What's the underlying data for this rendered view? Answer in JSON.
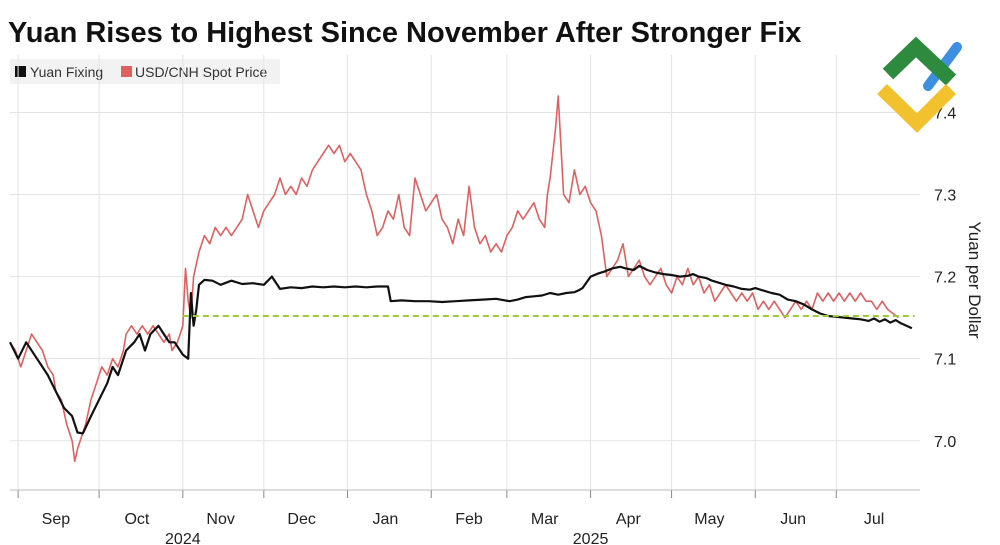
{
  "chart_data": {
    "type": "line",
    "title": "Yuan Rises to Highest Since November After Stronger Fix",
    "ylabel": "Yuan per Dollar",
    "xlabel": "",
    "ylim": [
      6.94,
      7.47
    ],
    "yticks": [
      7.0,
      7.1,
      7.2,
      7.3,
      7.4
    ],
    "ytick_labels": [
      "7.0",
      "7.1",
      "7.2",
      "7.3",
      "7.4"
    ],
    "x_axis": {
      "start": "2024-08-29",
      "end": "2025-07-25",
      "month_labels": [
        {
          "label": "Sep",
          "center": 17
        },
        {
          "label": "Oct",
          "center": 47
        },
        {
          "label": "Nov",
          "center": 78
        },
        {
          "label": "Dec",
          "center": 108
        },
        {
          "label": "Jan",
          "center": 139
        },
        {
          "label": "Feb",
          "center": 170
        },
        {
          "label": "Mar",
          "center": 198
        },
        {
          "label": "Apr",
          "center": 229
        },
        {
          "label": "May",
          "center": 259
        },
        {
          "label": "Jun",
          "center": 290
        },
        {
          "label": "Jul",
          "center": 320
        }
      ],
      "month_boundaries": [
        3,
        33,
        64,
        94,
        125,
        156,
        184,
        215,
        245,
        276,
        306
      ],
      "year_labels": [
        {
          "label": "2024",
          "center": 64
        },
        {
          "label": "2025",
          "center": 215
        }
      ]
    },
    "reference_line": {
      "value": 7.152,
      "start": 64,
      "end": 335,
      "color": "#9ACD32"
    },
    "series": [
      {
        "name": "Yuan Fixing",
        "color": "#111111",
        "points": [
          [
            0,
            7.12
          ],
          [
            3,
            7.1
          ],
          [
            6,
            7.12
          ],
          [
            10,
            7.1
          ],
          [
            14,
            7.08
          ],
          [
            17,
            7.06
          ],
          [
            20,
            7.04
          ],
          [
            23,
            7.03
          ],
          [
            25,
            7.01
          ],
          [
            27,
            7.009
          ],
          [
            30,
            7.03
          ],
          [
            33,
            7.05
          ],
          [
            36,
            7.07
          ],
          [
            38,
            7.09
          ],
          [
            40,
            7.08
          ],
          [
            43,
            7.11
          ],
          [
            46,
            7.12
          ],
          [
            48,
            7.13
          ],
          [
            50,
            7.11
          ],
          [
            52,
            7.13
          ],
          [
            55,
            7.14
          ],
          [
            57,
            7.13
          ],
          [
            59,
            7.12
          ],
          [
            61,
            7.12
          ],
          [
            63,
            7.11
          ],
          [
            64,
            7.105
          ],
          [
            66,
            7.1
          ],
          [
            67,
            7.18
          ],
          [
            68,
            7.14
          ],
          [
            69,
            7.16
          ],
          [
            70,
            7.19
          ],
          [
            72,
            7.196
          ],
          [
            75,
            7.195
          ],
          [
            78,
            7.19
          ],
          [
            82,
            7.195
          ],
          [
            86,
            7.191
          ],
          [
            90,
            7.192
          ],
          [
            94,
            7.19
          ],
          [
            97,
            7.2
          ],
          [
            100,
            7.185
          ],
          [
            104,
            7.187
          ],
          [
            108,
            7.186
          ],
          [
            112,
            7.188
          ],
          [
            116,
            7.187
          ],
          [
            120,
            7.188
          ],
          [
            124,
            7.187
          ],
          [
            128,
            7.188
          ],
          [
            132,
            7.187
          ],
          [
            136,
            7.188
          ],
          [
            140,
            7.188
          ],
          [
            141,
            7.17
          ],
          [
            145,
            7.171
          ],
          [
            150,
            7.17
          ],
          [
            155,
            7.17
          ],
          [
            160,
            7.169
          ],
          [
            165,
            7.17
          ],
          [
            170,
            7.171
          ],
          [
            175,
            7.172
          ],
          [
            180,
            7.173
          ],
          [
            185,
            7.17
          ],
          [
            188,
            7.172
          ],
          [
            191,
            7.175
          ],
          [
            194,
            7.176
          ],
          [
            197,
            7.177
          ],
          [
            200,
            7.18
          ],
          [
            203,
            7.178
          ],
          [
            206,
            7.18
          ],
          [
            209,
            7.181
          ],
          [
            211,
            7.184
          ],
          [
            212,
            7.186
          ],
          [
            215,
            7.2
          ],
          [
            218,
            7.204
          ],
          [
            220,
            7.206
          ],
          [
            223,
            7.21
          ],
          [
            226,
            7.212
          ],
          [
            228,
            7.21
          ],
          [
            231,
            7.208
          ],
          [
            233,
            7.213
          ],
          [
            236,
            7.208
          ],
          [
            239,
            7.205
          ],
          [
            242,
            7.203
          ],
          [
            245,
            7.202
          ],
          [
            248,
            7.2
          ],
          [
            251,
            7.201
          ],
          [
            253,
            7.203
          ],
          [
            255,
            7.2
          ],
          [
            258,
            7.198
          ],
          [
            260,
            7.195
          ],
          [
            262,
            7.193
          ],
          [
            265,
            7.19
          ],
          [
            268,
            7.188
          ],
          [
            271,
            7.185
          ],
          [
            274,
            7.184
          ],
          [
            276,
            7.186
          ],
          [
            279,
            7.183
          ],
          [
            282,
            7.18
          ],
          [
            285,
            7.178
          ],
          [
            288,
            7.172
          ],
          [
            291,
            7.17
          ],
          [
            294,
            7.166
          ],
          [
            297,
            7.16
          ],
          [
            300,
            7.155
          ],
          [
            303,
            7.152
          ],
          [
            306,
            7.151
          ],
          [
            309,
            7.15
          ],
          [
            312,
            7.149
          ],
          [
            315,
            7.148
          ],
          [
            318,
            7.146
          ],
          [
            320,
            7.149
          ],
          [
            322,
            7.145
          ],
          [
            324,
            7.148
          ],
          [
            326,
            7.144
          ],
          [
            328,
            7.147
          ],
          [
            330,
            7.143
          ],
          [
            332,
            7.14
          ],
          [
            334,
            7.137
          ]
        ]
      },
      {
        "name": "USD/CNH Spot Price",
        "color": "#E06060",
        "points": [
          [
            0,
            7.12
          ],
          [
            2,
            7.11
          ],
          [
            4,
            7.09
          ],
          [
            6,
            7.11
          ],
          [
            8,
            7.13
          ],
          [
            10,
            7.12
          ],
          [
            12,
            7.11
          ],
          [
            14,
            7.09
          ],
          [
            16,
            7.08
          ],
          [
            17,
            7.06
          ],
          [
            19,
            7.05
          ],
          [
            21,
            7.02
          ],
          [
            22,
            7.01
          ],
          [
            23,
            7.0
          ],
          [
            24,
            6.975
          ],
          [
            25,
            6.99
          ],
          [
            26,
            7.0
          ],
          [
            28,
            7.02
          ],
          [
            30,
            7.05
          ],
          [
            32,
            7.07
          ],
          [
            34,
            7.09
          ],
          [
            36,
            7.08
          ],
          [
            38,
            7.1
          ],
          [
            40,
            7.09
          ],
          [
            42,
            7.11
          ],
          [
            43,
            7.13
          ],
          [
            45,
            7.14
          ],
          [
            47,
            7.13
          ],
          [
            49,
            7.14
          ],
          [
            51,
            7.13
          ],
          [
            53,
            7.14
          ],
          [
            55,
            7.13
          ],
          [
            57,
            7.12
          ],
          [
            59,
            7.13
          ],
          [
            60,
            7.11
          ],
          [
            62,
            7.12
          ],
          [
            63,
            7.13
          ],
          [
            64,
            7.14
          ],
          [
            65,
            7.21
          ],
          [
            66,
            7.17
          ],
          [
            67,
            7.15
          ],
          [
            68,
            7.2
          ],
          [
            70,
            7.23
          ],
          [
            72,
            7.25
          ],
          [
            74,
            7.24
          ],
          [
            76,
            7.26
          ],
          [
            78,
            7.25
          ],
          [
            80,
            7.26
          ],
          [
            82,
            7.25
          ],
          [
            84,
            7.26
          ],
          [
            86,
            7.27
          ],
          [
            88,
            7.3
          ],
          [
            90,
            7.28
          ],
          [
            92,
            7.26
          ],
          [
            94,
            7.28
          ],
          [
            96,
            7.29
          ],
          [
            98,
            7.3
          ],
          [
            100,
            7.32
          ],
          [
            102,
            7.3
          ],
          [
            104,
            7.31
          ],
          [
            106,
            7.3
          ],
          [
            108,
            7.32
          ],
          [
            110,
            7.31
          ],
          [
            112,
            7.33
          ],
          [
            114,
            7.34
          ],
          [
            116,
            7.35
          ],
          [
            118,
            7.36
          ],
          [
            120,
            7.35
          ],
          [
            122,
            7.36
          ],
          [
            124,
            7.34
          ],
          [
            126,
            7.35
          ],
          [
            128,
            7.34
          ],
          [
            130,
            7.33
          ],
          [
            132,
            7.3
          ],
          [
            134,
            7.28
          ],
          [
            136,
            7.25
          ],
          [
            138,
            7.26
          ],
          [
            140,
            7.28
          ],
          [
            142,
            7.27
          ],
          [
            144,
            7.3
          ],
          [
            146,
            7.26
          ],
          [
            148,
            7.25
          ],
          [
            150,
            7.32
          ],
          [
            152,
            7.3
          ],
          [
            154,
            7.28
          ],
          [
            156,
            7.29
          ],
          [
            158,
            7.3
          ],
          [
            160,
            7.27
          ],
          [
            162,
            7.26
          ],
          [
            164,
            7.24
          ],
          [
            166,
            7.27
          ],
          [
            168,
            7.25
          ],
          [
            170,
            7.31
          ],
          [
            172,
            7.26
          ],
          [
            174,
            7.24
          ],
          [
            176,
            7.25
          ],
          [
            178,
            7.23
          ],
          [
            180,
            7.24
          ],
          [
            182,
            7.23
          ],
          [
            184,
            7.25
          ],
          [
            186,
            7.26
          ],
          [
            188,
            7.28
          ],
          [
            190,
            7.27
          ],
          [
            192,
            7.28
          ],
          [
            194,
            7.29
          ],
          [
            196,
            7.27
          ],
          [
            198,
            7.26
          ],
          [
            199,
            7.3
          ],
          [
            200,
            7.32
          ],
          [
            202,
            7.38
          ],
          [
            203,
            7.42
          ],
          [
            204,
            7.36
          ],
          [
            205,
            7.3
          ],
          [
            207,
            7.29
          ],
          [
            209,
            7.33
          ],
          [
            211,
            7.3
          ],
          [
            213,
            7.31
          ],
          [
            215,
            7.29
          ],
          [
            217,
            7.28
          ],
          [
            219,
            7.25
          ],
          [
            221,
            7.2
          ],
          [
            223,
            7.21
          ],
          [
            225,
            7.22
          ],
          [
            227,
            7.24
          ],
          [
            229,
            7.2
          ],
          [
            231,
            7.21
          ],
          [
            233,
            7.22
          ],
          [
            235,
            7.2
          ],
          [
            237,
            7.19
          ],
          [
            239,
            7.2
          ],
          [
            241,
            7.21
          ],
          [
            243,
            7.19
          ],
          [
            245,
            7.18
          ],
          [
            247,
            7.2
          ],
          [
            249,
            7.19
          ],
          [
            251,
            7.21
          ],
          [
            253,
            7.19
          ],
          [
            255,
            7.2
          ],
          [
            257,
            7.18
          ],
          [
            259,
            7.19
          ],
          [
            261,
            7.17
          ],
          [
            263,
            7.18
          ],
          [
            265,
            7.19
          ],
          [
            267,
            7.18
          ],
          [
            269,
            7.17
          ],
          [
            271,
            7.18
          ],
          [
            273,
            7.17
          ],
          [
            275,
            7.18
          ],
          [
            277,
            7.16
          ],
          [
            279,
            7.17
          ],
          [
            281,
            7.16
          ],
          [
            283,
            7.17
          ],
          [
            285,
            7.16
          ],
          [
            287,
            7.15
          ],
          [
            289,
            7.16
          ],
          [
            291,
            7.17
          ],
          [
            293,
            7.16
          ],
          [
            295,
            7.17
          ],
          [
            297,
            7.16
          ],
          [
            299,
            7.18
          ],
          [
            301,
            7.17
          ],
          [
            303,
            7.18
          ],
          [
            305,
            7.17
          ],
          [
            307,
            7.18
          ],
          [
            309,
            7.17
          ],
          [
            311,
            7.18
          ],
          [
            313,
            7.17
          ],
          [
            315,
            7.18
          ],
          [
            317,
            7.17
          ],
          [
            319,
            7.17
          ],
          [
            321,
            7.16
          ],
          [
            323,
            7.17
          ],
          [
            325,
            7.16
          ],
          [
            327,
            7.155
          ],
          [
            329,
            7.15
          ]
        ]
      }
    ],
    "legend": [
      {
        "label": "Yuan Fixing",
        "color": "#111111"
      },
      {
        "label": "USD/CNH Spot Price",
        "color": "#E06060"
      }
    ],
    "legend_placement": "top-left",
    "grid": true
  }
}
